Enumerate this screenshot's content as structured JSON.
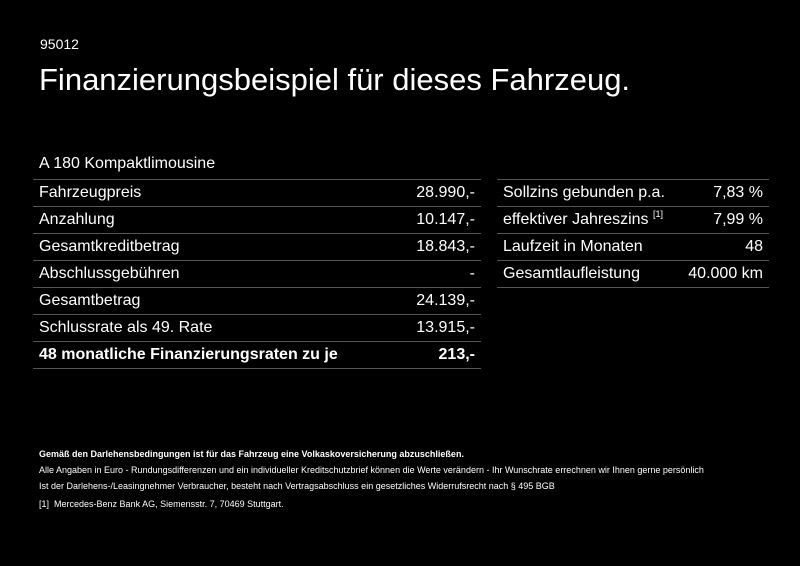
{
  "code": "95012",
  "title": "Finanzierungsbeispiel für dieses Fahrzeug.",
  "model": "A 180 Kompaktlimousine",
  "left_rows": [
    {
      "label": "Fahrzeugpreis",
      "value": "28.990,-"
    },
    {
      "label": "Anzahlung",
      "value": "10.147,-"
    },
    {
      "label": "Gesamtkreditbetrag",
      "value": "18.843,-"
    },
    {
      "label": "Abschlussgebühren",
      "value": "-"
    },
    {
      "label": "Gesamtbetrag",
      "value": "24.139,-"
    },
    {
      "label": "Schlussrate als 49. Rate",
      "value": "13.915,-"
    },
    {
      "label": "48 monatliche Finanzierungsraten zu je",
      "value": "213,-"
    }
  ],
  "right_rows": [
    {
      "label": "Sollzins gebunden p.a.",
      "value": "7,83 %"
    },
    {
      "label": "effektiver Jahreszins",
      "sup": "[1]",
      "value": "7,99 %"
    },
    {
      "label": "Laufzeit in Monaten",
      "value": "48"
    },
    {
      "label": "Gesamtlaufleistung",
      "value": "40.000 km"
    }
  ],
  "notes": {
    "bold": "Gemäß den Darlehensbedingungen ist für das Fahrzeug eine Volkaskoversicherung abzuschließen.",
    "line1": "Alle Angaben in Euro - Rundungsdifferenzen und ein individueller Kreditschutzbrief können die Werte verändern - Ihr Wunschrate errechnen wir Ihnen gerne persönlich",
    "line2": "Ist der Darlehens-/Leasingnehmer Verbraucher, besteht nach Vertragsabschluss ein gesetzliches Widerrufsrecht nach § 495 BGB",
    "footnote_mark": "[1]",
    "footnote": "Mercedes-Benz Bank AG, Siemensstr. 7, 70469 Stuttgart."
  }
}
